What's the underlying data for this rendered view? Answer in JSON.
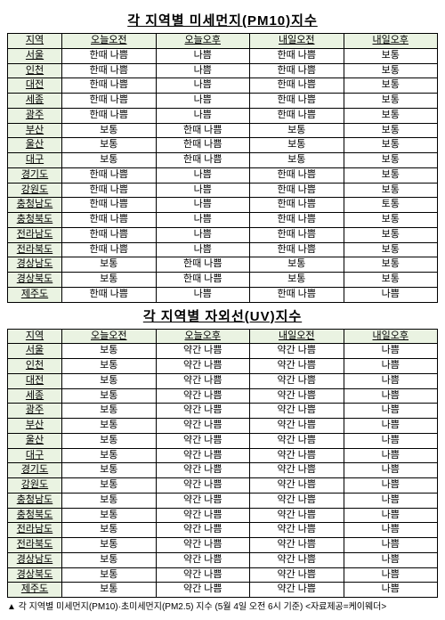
{
  "table1": {
    "title": "각 지역별 미세먼지(PM10)지수",
    "columns": [
      "지역",
      "오늘오전",
      "오늘오후",
      "내일오전",
      "내일오후"
    ],
    "rows": [
      [
        "서울",
        "한때 나쁨",
        "나쁨",
        "한때 나쁨",
        "보통"
      ],
      [
        "인천",
        "한때 나쁨",
        "나쁨",
        "한때 나쁨",
        "보통"
      ],
      [
        "대전",
        "한때 나쁨",
        "나쁨",
        "한때 나쁨",
        "보통"
      ],
      [
        "세종",
        "한때 나쁨",
        "나쁨",
        "한때 나쁨",
        "보통"
      ],
      [
        "광주",
        "한때 나쁨",
        "나쁨",
        "한때 나쁨",
        "보통"
      ],
      [
        "부산",
        "보통",
        "한때 나쁨",
        "보통",
        "보통"
      ],
      [
        "울산",
        "보통",
        "한때 나쁨",
        "보통",
        "보통"
      ],
      [
        "대구",
        "보통",
        "한때 나쁨",
        "보통",
        "보통"
      ],
      [
        "경기도",
        "한때 나쁨",
        "나쁨",
        "한때 나쁨",
        "보통"
      ],
      [
        "강원도",
        "한때 나쁨",
        "나쁨",
        "한때 나쁨",
        "보통"
      ],
      [
        "충청남도",
        "한때 나쁨",
        "나쁨",
        "한때 나쁨",
        "토통"
      ],
      [
        "충청북도",
        "한때 나쁨",
        "나쁨",
        "한때 나쁨",
        "보통"
      ],
      [
        "전라남도",
        "한때 나쁨",
        "나쁨",
        "한때 나쁨",
        "보통"
      ],
      [
        "전라북도",
        "한때 나쁨",
        "나쁨",
        "한때 나쁨",
        "보통"
      ],
      [
        "경상남도",
        "보통",
        "한때 나쁨",
        "보통",
        "보통"
      ],
      [
        "경상북도",
        "보통",
        "한때 나쁨",
        "보통",
        "보통"
      ],
      [
        "제주도",
        "한때 나쁨",
        "나쁨",
        "한때 나쁨",
        "나쁨"
      ]
    ]
  },
  "table2": {
    "title": "각 지역별 자외선(UV)지수",
    "columns": [
      "지역",
      "오늘오전",
      "오늘오후",
      "내일오전",
      "내일오후"
    ],
    "rows": [
      [
        "서울",
        "보통",
        "약간 나쁨",
        "약간 나쁨",
        "나쁨"
      ],
      [
        "인천",
        "보통",
        "약간 나쁨",
        "약간 나쁨",
        "나쁨"
      ],
      [
        "대전",
        "보통",
        "약간 나쁨",
        "약간 나쁨",
        "나쁨"
      ],
      [
        "세종",
        "보통",
        "약간 나쁨",
        "약간 나쁨",
        "나쁨"
      ],
      [
        "광주",
        "보통",
        "약간 나쁨",
        "약간 나쁨",
        "나쁨"
      ],
      [
        "부산",
        "보통",
        "약간 나쁨",
        "약간 나쁨",
        "나쁨"
      ],
      [
        "울산",
        "보통",
        "약간 나쁨",
        "약간 나쁨",
        "나쁨"
      ],
      [
        "대구",
        "보통",
        "약간 나쁨",
        "약간 나쁨",
        "나쁨"
      ],
      [
        "경기도",
        "보통",
        "약간 나쁨",
        "약간 나쁨",
        "나쁨"
      ],
      [
        "강원도",
        "보통",
        "약간 나쁨",
        "약간 나쁨",
        "나쁨"
      ],
      [
        "충청남도",
        "보통",
        "약간 나쁨",
        "약간 나쁨",
        "나쁨"
      ],
      [
        "충청북도",
        "보통",
        "약간 나쁨",
        "약간 나쁨",
        "나쁨"
      ],
      [
        "전라남도",
        "보통",
        "약간 나쁨",
        "약간 나쁨",
        "나쁨"
      ],
      [
        "전라북도",
        "보통",
        "약간 나쁨",
        "약간 나쁨",
        "나쁨"
      ],
      [
        "경상남도",
        "보통",
        "약간 나쁨",
        "약간 나쁨",
        "나쁨"
      ],
      [
        "경상북도",
        "보통",
        "약간 나쁨",
        "약간 나쁨",
        "나쁨"
      ],
      [
        "제주도",
        "보통",
        "약간 나쁨",
        "약간 나쁨",
        "나쁨"
      ]
    ]
  },
  "footnote": "▲ 각 지역별 미세먼지(PM10)·초미세먼지(PM2.5) 지수 (5월 4일 오전 6시 기준) <자료제공=케이웨더>"
}
